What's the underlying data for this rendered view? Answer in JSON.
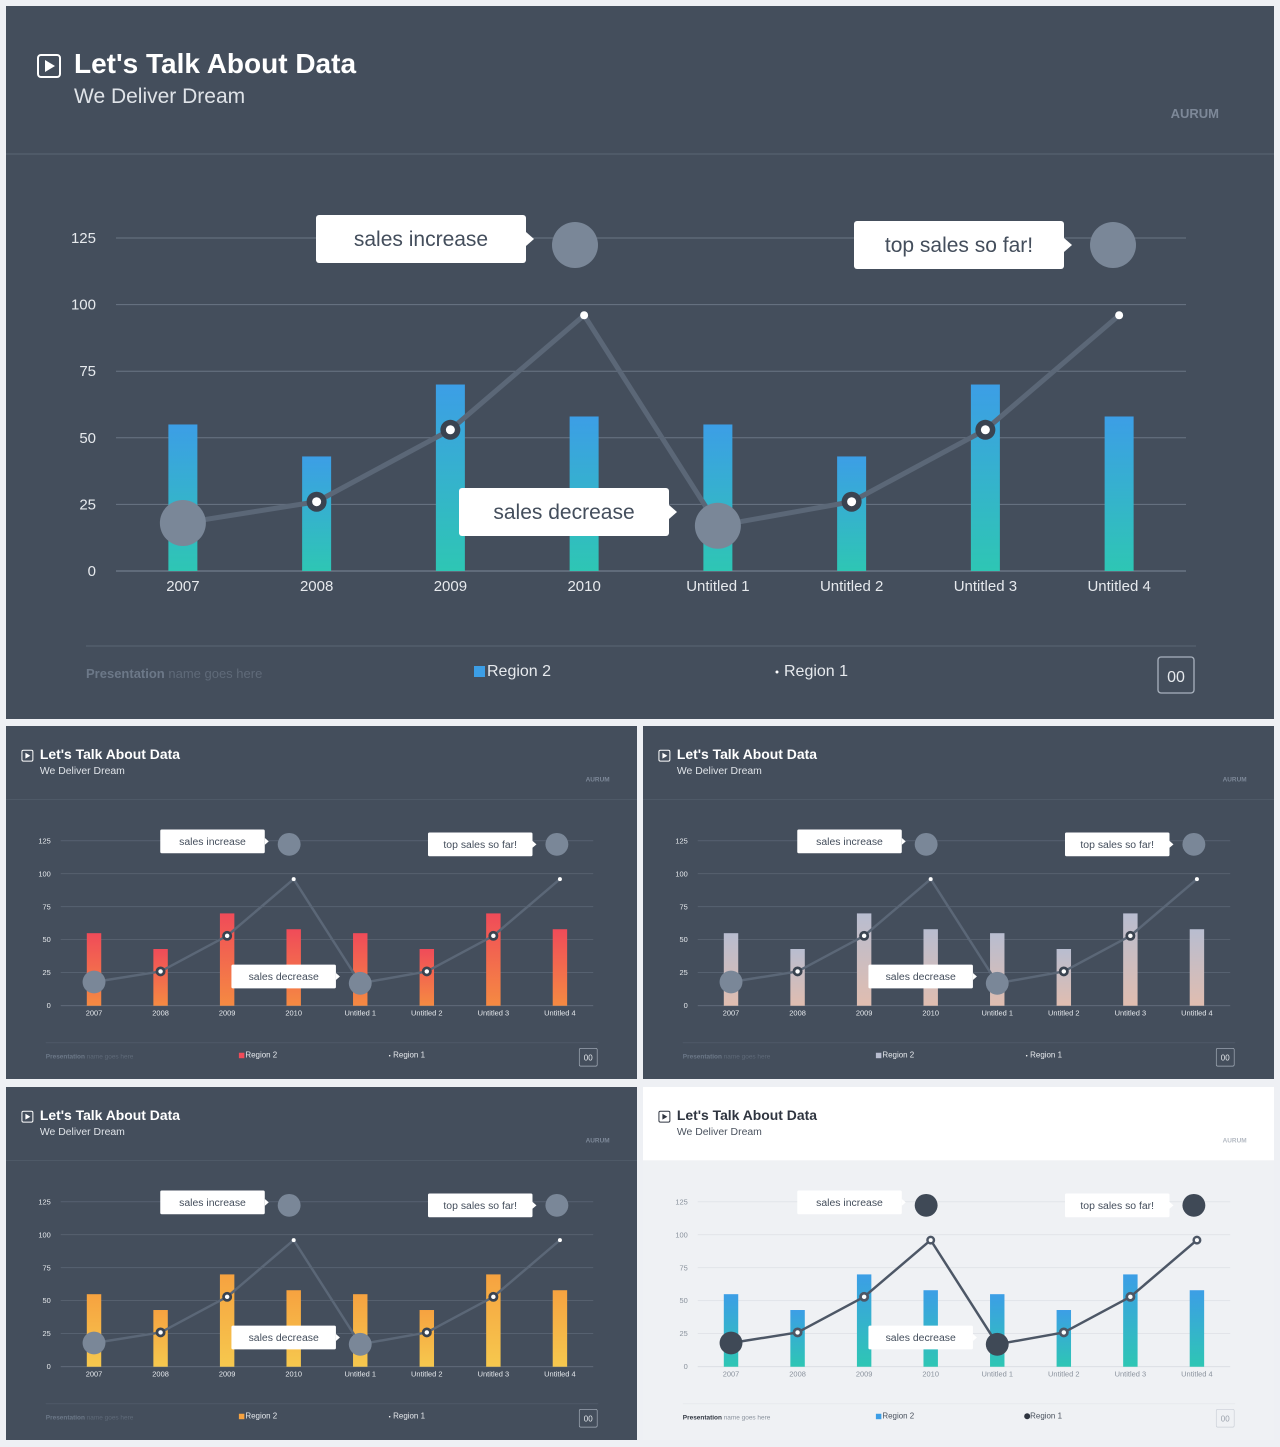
{
  "slides": [
    {
      "id": "main",
      "theme": "dark",
      "title": "Let's Talk About Data",
      "subtitle": "We Deliver Dream",
      "brand": "AURUM",
      "footer": {
        "presentation_bold": "Presentation",
        "presentation_rest": " name goes here",
        "page": "00"
      },
      "colors": {
        "bar_top": "#3c9ee6",
        "bar_bottom": "#2ec6b4",
        "line": "#5b6777",
        "callout_circle": "#7a8798"
      }
    },
    {
      "id": "red",
      "theme": "dark",
      "title": "Let's Talk About Data",
      "subtitle": "We Deliver Dream",
      "brand": "AURUM",
      "footer": {
        "presentation_bold": "Presentation",
        "presentation_rest": " name goes here",
        "page": "00"
      },
      "colors": {
        "bar_top": "#f04b59",
        "bar_bottom": "#f58a42",
        "line": "#5b6777",
        "callout_circle": "#7a8798"
      }
    },
    {
      "id": "pastel",
      "theme": "dark",
      "title": "Let's Talk About Data",
      "subtitle": "We Deliver Dream",
      "brand": "AURUM",
      "footer": {
        "presentation_bold": "Presentation",
        "presentation_rest": " name goes here",
        "page": "00"
      },
      "colors": {
        "bar_top": "#b8bdd0",
        "bar_bottom": "#e0bdb0",
        "line": "#5b6777",
        "callout_circle": "#7a8798"
      }
    },
    {
      "id": "orange",
      "theme": "dark",
      "title": "Let's Talk About Data",
      "subtitle": "We Deliver Dream",
      "brand": "AURUM",
      "footer": {
        "presentation_bold": "Presentation",
        "presentation_rest": " name goes here",
        "page": "00"
      },
      "colors": {
        "bar_top": "#f6a240",
        "bar_bottom": "#f6c84e",
        "line": "#5b6777",
        "callout_circle": "#7a8798"
      }
    },
    {
      "id": "light",
      "theme": "light",
      "title": "Let's Talk About Data",
      "subtitle": "We Deliver Dream",
      "brand": "AURUM",
      "footer": {
        "presentation_bold": "Presentation",
        "presentation_rest": " name goes here",
        "page": "00"
      },
      "colors": {
        "bar_top": "#3c9ee6",
        "bar_bottom": "#2ec6b4",
        "line": "#4d5766",
        "callout_circle": "#3f4956"
      }
    }
  ],
  "chart_data": {
    "type": "bar",
    "categories": [
      "2007",
      "2008",
      "2009",
      "2010",
      "Untitled 1",
      "Untitled 2",
      "Untitled 3",
      "Untitled 4"
    ],
    "series": [
      {
        "name": "Region 2",
        "type": "bar",
        "values": [
          55,
          43,
          70,
          58,
          55,
          43,
          70,
          58
        ]
      },
      {
        "name": "Region 1",
        "type": "line",
        "values": [
          18,
          26,
          53,
          96,
          17,
          26,
          53,
          96
        ]
      }
    ],
    "ylim": [
      0,
      125
    ],
    "yticks": [
      0,
      25,
      50,
      75,
      100,
      125
    ],
    "grid": true,
    "legend": "bottom-center",
    "annotations": [
      "sales increase",
      "top sales so far!",
      "sales decrease"
    ]
  },
  "icons": {
    "title_icon": "play-icon"
  }
}
